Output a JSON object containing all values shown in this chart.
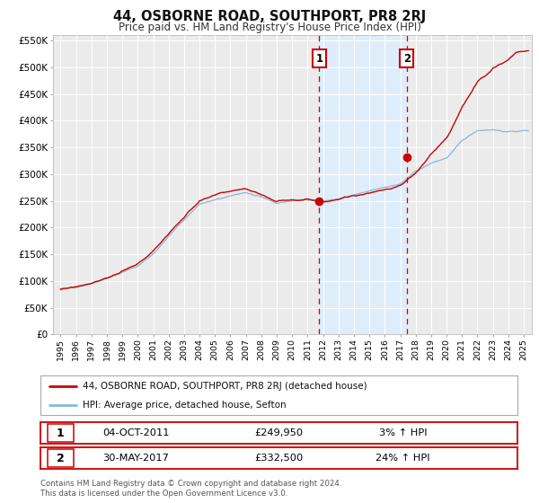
{
  "title": "44, OSBORNE ROAD, SOUTHPORT, PR8 2RJ",
  "subtitle": "Price paid vs. HM Land Registry's House Price Index (HPI)",
  "legend_line1": "44, OSBORNE ROAD, SOUTHPORT, PR8 2RJ (detached house)",
  "legend_line2": "HPI: Average price, detached house, Sefton",
  "ann1_label": "1",
  "ann1_date": "04-OCT-2011",
  "ann1_price": "£249,950",
  "ann1_hpi": "3% ↑ HPI",
  "ann1_x": 2011.75,
  "ann1_y": 249950,
  "ann2_label": "2",
  "ann2_date": "30-MAY-2017",
  "ann2_price": "£332,500",
  "ann2_hpi": "24% ↑ HPI",
  "ann2_x": 2017.42,
  "ann2_y": 332500,
  "shade_start": 2011.75,
  "shade_end": 2017.42,
  "ylim": [
    0,
    560000
  ],
  "xlim": [
    1994.5,
    2025.5
  ],
  "yticks": [
    0,
    50000,
    100000,
    150000,
    200000,
    250000,
    300000,
    350000,
    400000,
    450000,
    500000,
    550000
  ],
  "ytick_labels": [
    "£0",
    "£50K",
    "£100K",
    "£150K",
    "£200K",
    "£250K",
    "£300K",
    "£350K",
    "£400K",
    "£450K",
    "£500K",
    "£550K"
  ],
  "xticks": [
    1995,
    1996,
    1997,
    1998,
    1999,
    2000,
    2001,
    2002,
    2003,
    2004,
    2005,
    2006,
    2007,
    2008,
    2009,
    2010,
    2011,
    2012,
    2013,
    2014,
    2015,
    2016,
    2017,
    2018,
    2019,
    2020,
    2021,
    2022,
    2023,
    2024,
    2025
  ],
  "red_color": "#cc0000",
  "blue_color": "#88b8d8",
  "shade_color": "#ddeeff",
  "bg_color": "#ebebeb",
  "footnote_line1": "Contains HM Land Registry data © Crown copyright and database right 2024.",
  "footnote_line2": "This data is licensed under the Open Government Licence v3.0.",
  "title_fontsize": 10.5,
  "subtitle_fontsize": 8.5
}
